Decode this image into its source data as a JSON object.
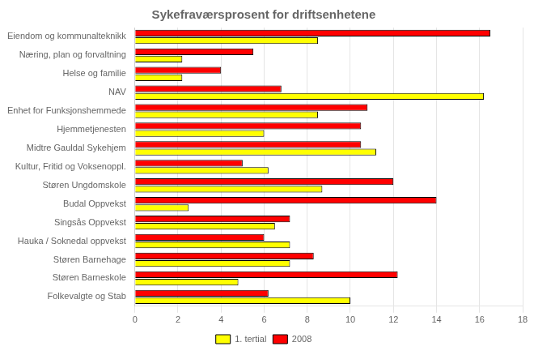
{
  "chart_data": {
    "type": "bar",
    "orientation": "horizontal",
    "title": "Sykefraværsprosent for driftsenhetene",
    "categories": [
      "Eiendom og kommunalteknikk",
      "Næring, plan og forvaltning",
      "Helse og familie",
      "NAV",
      "Enhet for Funksjonshemmede",
      "Hjemmetjenesten",
      "Midtre Gauldal Sykehjem",
      "Kultur, Fritid og Voksenoppl.",
      "Støren Ungdomskole",
      "Budal Oppvekst",
      "Singsås Oppvekst",
      "Hauka / Soknedal oppvekst",
      "Støren Barnehage",
      "Støren Barneskole",
      "Folkevalgte og Stab"
    ],
    "series": [
      {
        "name": "2008",
        "color": "#FF0000",
        "values": [
          16.5,
          5.5,
          4.0,
          6.8,
          10.8,
          10.5,
          10.5,
          5.0,
          12.0,
          14.0,
          7.2,
          6.0,
          8.3,
          12.2,
          6.2
        ]
      },
      {
        "name": "1. tertial",
        "color": "#FFFF00",
        "values": [
          8.5,
          2.2,
          2.2,
          16.2,
          8.5,
          6.0,
          11.2,
          6.2,
          8.7,
          2.5,
          6.5,
          7.2,
          7.2,
          4.8,
          10.0
        ]
      }
    ],
    "xlim": [
      0,
      18
    ],
    "xticks": [
      0,
      2,
      4,
      6,
      8,
      10,
      12,
      14,
      16,
      18
    ],
    "grid": true,
    "legend": "bottom"
  }
}
